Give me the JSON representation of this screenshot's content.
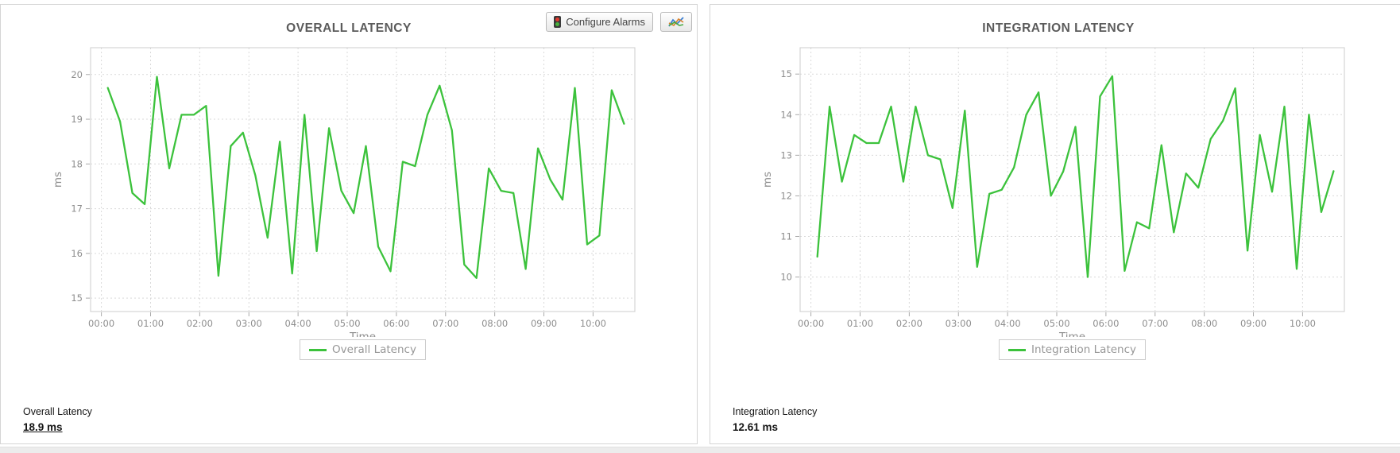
{
  "toolbar": {
    "configure_label": "Configure Alarms",
    "icons": [
      "traffic-light-icon",
      "area-chart-icon"
    ]
  },
  "panels": [
    {
      "title": "OVERALL LATENCY",
      "legend_label": "Overall Latency",
      "summary": {
        "label": "Overall Latency",
        "value": "18.9 ms"
      }
    },
    {
      "title": "INTEGRATION LATENCY",
      "legend_label": "Integration Latency",
      "summary": {
        "label": "Integration Latency",
        "value": "12.61 ms"
      }
    }
  ],
  "colors": {
    "series_green": "#3cc23c",
    "axis_text": "#8e8e8e",
    "grid_line": "#d9d9d9",
    "plot_border": "#cccccc"
  },
  "chart_data": [
    {
      "type": "line",
      "title": "OVERALL LATENCY",
      "xlabel": "Time",
      "ylabel": "ms",
      "legend_position": "bottom",
      "grid": true,
      "x_tick_labels": [
        "00:00",
        "01:00",
        "02:00",
        "03:00",
        "04:00",
        "05:00",
        "06:00",
        "07:00",
        "08:00",
        "09:00",
        "10:00"
      ],
      "x_ticks_hours": [
        0,
        1,
        2,
        3,
        4,
        5,
        6,
        7,
        8,
        9,
        10
      ],
      "xlim_hours": [
        -0.22,
        10.85
      ],
      "y_ticks": [
        15,
        16,
        17,
        18,
        19,
        20
      ],
      "ylim": [
        14.7,
        20.6
      ],
      "x_hours": [
        0.13,
        0.38,
        0.63,
        0.88,
        1.13,
        1.38,
        1.63,
        1.88,
        2.13,
        2.38,
        2.63,
        2.88,
        3.13,
        3.38,
        3.63,
        3.88,
        4.13,
        4.38,
        4.63,
        4.88,
        5.13,
        5.38,
        5.63,
        5.88,
        6.13,
        6.38,
        6.63,
        6.88,
        7.13,
        7.38,
        7.63,
        7.88,
        8.13,
        8.38,
        8.63,
        8.88,
        9.13,
        9.38,
        9.63,
        9.88,
        10.13,
        10.38,
        10.63
      ],
      "series": [
        {
          "name": "Overall Latency",
          "color": "#3cc23c",
          "values": [
            19.7,
            18.95,
            17.35,
            17.1,
            19.95,
            17.9,
            19.1,
            19.1,
            19.3,
            15.5,
            18.4,
            18.7,
            17.75,
            16.35,
            18.5,
            15.55,
            19.1,
            16.05,
            18.8,
            17.4,
            16.9,
            18.4,
            16.15,
            15.6,
            18.05,
            17.95,
            19.1,
            19.75,
            18.75,
            15.75,
            15.45,
            17.9,
            17.4,
            17.35,
            15.65,
            18.35,
            17.65,
            17.2,
            19.7,
            16.2,
            16.4,
            19.65,
            18.9
          ]
        }
      ]
    },
    {
      "type": "line",
      "title": "INTEGRATION LATENCY",
      "xlabel": "Time",
      "ylabel": "ms",
      "legend_position": "bottom",
      "grid": true,
      "x_tick_labels": [
        "00:00",
        "01:00",
        "02:00",
        "03:00",
        "04:00",
        "05:00",
        "06:00",
        "07:00",
        "08:00",
        "09:00",
        "10:00"
      ],
      "x_ticks_hours": [
        0,
        1,
        2,
        3,
        4,
        5,
        6,
        7,
        8,
        9,
        10
      ],
      "xlim_hours": [
        -0.22,
        10.85
      ],
      "y_ticks": [
        10,
        11,
        12,
        13,
        14,
        15
      ],
      "ylim": [
        9.15,
        15.65
      ],
      "x_hours": [
        0.13,
        0.38,
        0.63,
        0.88,
        1.13,
        1.38,
        1.63,
        1.88,
        2.13,
        2.38,
        2.63,
        2.88,
        3.13,
        3.38,
        3.63,
        3.88,
        4.13,
        4.38,
        4.63,
        4.88,
        5.13,
        5.38,
        5.63,
        5.88,
        6.13,
        6.38,
        6.63,
        6.88,
        7.13,
        7.38,
        7.63,
        7.88,
        8.13,
        8.38,
        8.63,
        8.88,
        9.13,
        9.38,
        9.63,
        9.88,
        10.13,
        10.38,
        10.63
      ],
      "series": [
        {
          "name": "Integration Latency",
          "color": "#3cc23c",
          "values": [
            10.5,
            14.2,
            12.35,
            13.5,
            13.3,
            13.3,
            14.2,
            12.35,
            14.2,
            13.0,
            12.9,
            11.7,
            14.1,
            10.25,
            12.05,
            12.15,
            12.7,
            14.0,
            14.55,
            12.0,
            12.6,
            13.7,
            10.0,
            14.45,
            14.95,
            10.15,
            11.35,
            11.2,
            13.25,
            11.1,
            12.55,
            12.2,
            13.4,
            13.85,
            14.65,
            10.65,
            13.5,
            12.1,
            14.2,
            10.2,
            14.0,
            11.6,
            12.61
          ]
        }
      ]
    }
  ]
}
